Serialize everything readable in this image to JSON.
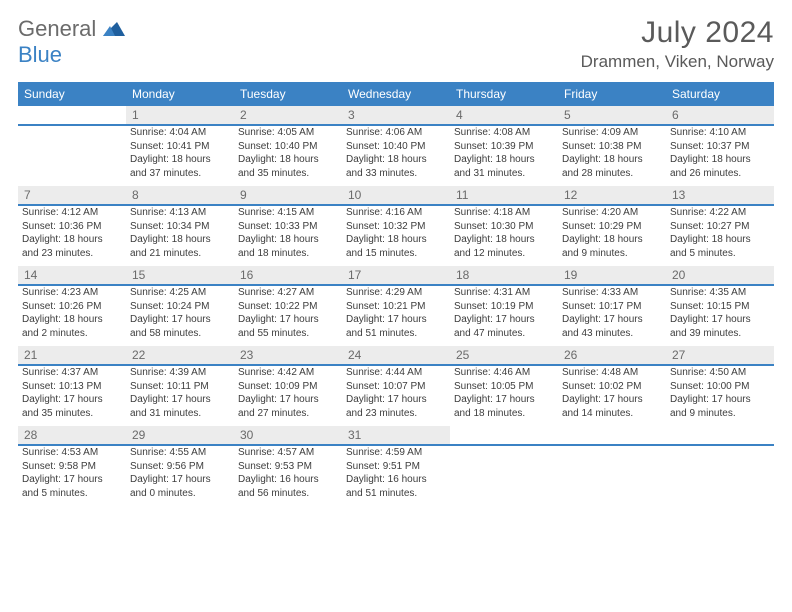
{
  "brand": {
    "part1": "General",
    "part2": "Blue"
  },
  "title": "July 2024",
  "location": "Drammen, Viken, Norway",
  "colors": {
    "header_bg": "#3b82c4",
    "header_text": "#ffffff",
    "daynum_bg": "#ececec",
    "daynum_text": "#6a6a6a",
    "body_text": "#3d3d3d",
    "title_text": "#5a5a5a",
    "logo_gray": "#6b6b6b",
    "logo_blue": "#3b82c4",
    "rule": "#3b82c4",
    "page_bg": "#ffffff"
  },
  "typography": {
    "title_fontsize": 30,
    "location_fontsize": 17,
    "dayheader_fontsize": 12,
    "daynum_fontsize": 12,
    "cell_fontsize": 10
  },
  "day_headers": [
    "Sunday",
    "Monday",
    "Tuesday",
    "Wednesday",
    "Thursday",
    "Friday",
    "Saturday"
  ],
  "weeks": [
    [
      {
        "n": "",
        "lines": []
      },
      {
        "n": "1",
        "lines": [
          "Sunrise: 4:04 AM",
          "Sunset: 10:41 PM",
          "Daylight: 18 hours and 37 minutes."
        ]
      },
      {
        "n": "2",
        "lines": [
          "Sunrise: 4:05 AM",
          "Sunset: 10:40 PM",
          "Daylight: 18 hours and 35 minutes."
        ]
      },
      {
        "n": "3",
        "lines": [
          "Sunrise: 4:06 AM",
          "Sunset: 10:40 PM",
          "Daylight: 18 hours and 33 minutes."
        ]
      },
      {
        "n": "4",
        "lines": [
          "Sunrise: 4:08 AM",
          "Sunset: 10:39 PM",
          "Daylight: 18 hours and 31 minutes."
        ]
      },
      {
        "n": "5",
        "lines": [
          "Sunrise: 4:09 AM",
          "Sunset: 10:38 PM",
          "Daylight: 18 hours and 28 minutes."
        ]
      },
      {
        "n": "6",
        "lines": [
          "Sunrise: 4:10 AM",
          "Sunset: 10:37 PM",
          "Daylight: 18 hours and 26 minutes."
        ]
      }
    ],
    [
      {
        "n": "7",
        "lines": [
          "Sunrise: 4:12 AM",
          "Sunset: 10:36 PM",
          "Daylight: 18 hours and 23 minutes."
        ]
      },
      {
        "n": "8",
        "lines": [
          "Sunrise: 4:13 AM",
          "Sunset: 10:34 PM",
          "Daylight: 18 hours and 21 minutes."
        ]
      },
      {
        "n": "9",
        "lines": [
          "Sunrise: 4:15 AM",
          "Sunset: 10:33 PM",
          "Daylight: 18 hours and 18 minutes."
        ]
      },
      {
        "n": "10",
        "lines": [
          "Sunrise: 4:16 AM",
          "Sunset: 10:32 PM",
          "Daylight: 18 hours and 15 minutes."
        ]
      },
      {
        "n": "11",
        "lines": [
          "Sunrise: 4:18 AM",
          "Sunset: 10:30 PM",
          "Daylight: 18 hours and 12 minutes."
        ]
      },
      {
        "n": "12",
        "lines": [
          "Sunrise: 4:20 AM",
          "Sunset: 10:29 PM",
          "Daylight: 18 hours and 9 minutes."
        ]
      },
      {
        "n": "13",
        "lines": [
          "Sunrise: 4:22 AM",
          "Sunset: 10:27 PM",
          "Daylight: 18 hours and 5 minutes."
        ]
      }
    ],
    [
      {
        "n": "14",
        "lines": [
          "Sunrise: 4:23 AM",
          "Sunset: 10:26 PM",
          "Daylight: 18 hours and 2 minutes."
        ]
      },
      {
        "n": "15",
        "lines": [
          "Sunrise: 4:25 AM",
          "Sunset: 10:24 PM",
          "Daylight: 17 hours and 58 minutes."
        ]
      },
      {
        "n": "16",
        "lines": [
          "Sunrise: 4:27 AM",
          "Sunset: 10:22 PM",
          "Daylight: 17 hours and 55 minutes."
        ]
      },
      {
        "n": "17",
        "lines": [
          "Sunrise: 4:29 AM",
          "Sunset: 10:21 PM",
          "Daylight: 17 hours and 51 minutes."
        ]
      },
      {
        "n": "18",
        "lines": [
          "Sunrise: 4:31 AM",
          "Sunset: 10:19 PM",
          "Daylight: 17 hours and 47 minutes."
        ]
      },
      {
        "n": "19",
        "lines": [
          "Sunrise: 4:33 AM",
          "Sunset: 10:17 PM",
          "Daylight: 17 hours and 43 minutes."
        ]
      },
      {
        "n": "20",
        "lines": [
          "Sunrise: 4:35 AM",
          "Sunset: 10:15 PM",
          "Daylight: 17 hours and 39 minutes."
        ]
      }
    ],
    [
      {
        "n": "21",
        "lines": [
          "Sunrise: 4:37 AM",
          "Sunset: 10:13 PM",
          "Daylight: 17 hours and 35 minutes."
        ]
      },
      {
        "n": "22",
        "lines": [
          "Sunrise: 4:39 AM",
          "Sunset: 10:11 PM",
          "Daylight: 17 hours and 31 minutes."
        ]
      },
      {
        "n": "23",
        "lines": [
          "Sunrise: 4:42 AM",
          "Sunset: 10:09 PM",
          "Daylight: 17 hours and 27 minutes."
        ]
      },
      {
        "n": "24",
        "lines": [
          "Sunrise: 4:44 AM",
          "Sunset: 10:07 PM",
          "Daylight: 17 hours and 23 minutes."
        ]
      },
      {
        "n": "25",
        "lines": [
          "Sunrise: 4:46 AM",
          "Sunset: 10:05 PM",
          "Daylight: 17 hours and 18 minutes."
        ]
      },
      {
        "n": "26",
        "lines": [
          "Sunrise: 4:48 AM",
          "Sunset: 10:02 PM",
          "Daylight: 17 hours and 14 minutes."
        ]
      },
      {
        "n": "27",
        "lines": [
          "Sunrise: 4:50 AM",
          "Sunset: 10:00 PM",
          "Daylight: 17 hours and 9 minutes."
        ]
      }
    ],
    [
      {
        "n": "28",
        "lines": [
          "Sunrise: 4:53 AM",
          "Sunset: 9:58 PM",
          "Daylight: 17 hours and 5 minutes."
        ]
      },
      {
        "n": "29",
        "lines": [
          "Sunrise: 4:55 AM",
          "Sunset: 9:56 PM",
          "Daylight: 17 hours and 0 minutes."
        ]
      },
      {
        "n": "30",
        "lines": [
          "Sunrise: 4:57 AM",
          "Sunset: 9:53 PM",
          "Daylight: 16 hours and 56 minutes."
        ]
      },
      {
        "n": "31",
        "lines": [
          "Sunrise: 4:59 AM",
          "Sunset: 9:51 PM",
          "Daylight: 16 hours and 51 minutes."
        ]
      },
      {
        "n": "",
        "lines": []
      },
      {
        "n": "",
        "lines": []
      },
      {
        "n": "",
        "lines": []
      }
    ]
  ]
}
